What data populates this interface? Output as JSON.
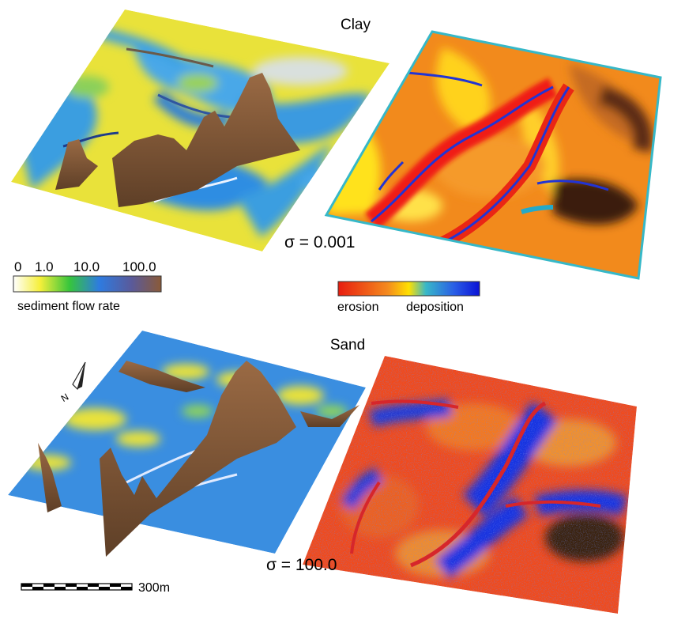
{
  "panels": [
    {
      "title": "Clay",
      "sigma_label": "σ = 0.001"
    },
    {
      "title": "Sand",
      "sigma_label": "σ = 100.0"
    }
  ],
  "flow_legend": {
    "ticks": [
      "0",
      "1.0",
      "10.0",
      "100.0"
    ],
    "label": "sediment flow rate",
    "colors": [
      "#ffffff",
      "#f5ef3a",
      "#36c53c",
      "#2e7be0",
      "#5a5a9a",
      "#8a5a38"
    ]
  },
  "change_legend": {
    "left_label": "erosion",
    "right_label": "deposition",
    "colors": [
      "#e81d0f",
      "#f48a1e",
      "#ffe000",
      "#38b8c8",
      "#2a5ee6",
      "#0b12d6"
    ]
  },
  "scale_bar": {
    "label": "300m"
  },
  "north_arrow": {
    "label": "N",
    "icon": "north-arrow-icon"
  },
  "colors": {
    "flow_low": "#f2ec3c",
    "flow_mid": "#3c8fe3",
    "flow_high": "#7a5436",
    "erosion": "#f06a1a",
    "deposition": "#1e3fe0",
    "channel": "#d6262b"
  }
}
